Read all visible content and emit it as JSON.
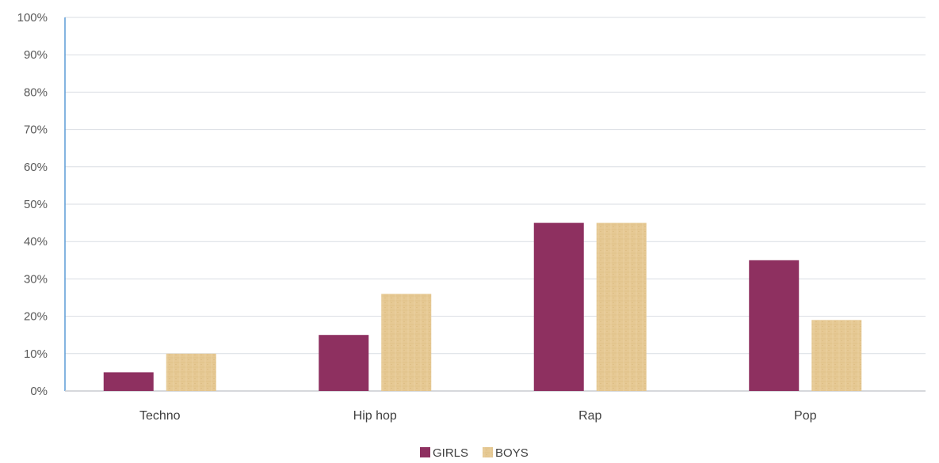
{
  "chart_data": {
    "type": "bar",
    "categories": [
      "Techno",
      "Hip hop",
      "Rap",
      "Pop"
    ],
    "series": [
      {
        "name": "GIRLS",
        "values": [
          5,
          15,
          45,
          35
        ],
        "color": "#8e3060"
      },
      {
        "name": "BOYS",
        "values": [
          10,
          26,
          45,
          19
        ],
        "color": "#e3c48d"
      }
    ],
    "y_ticks": [
      "0%",
      "10%",
      "20%",
      "30%",
      "40%",
      "50%",
      "60%",
      "70%",
      "80%",
      "90%",
      "100%"
    ],
    "ylim": [
      0,
      100
    ],
    "grid": true,
    "legend_position": "bottom-center"
  }
}
